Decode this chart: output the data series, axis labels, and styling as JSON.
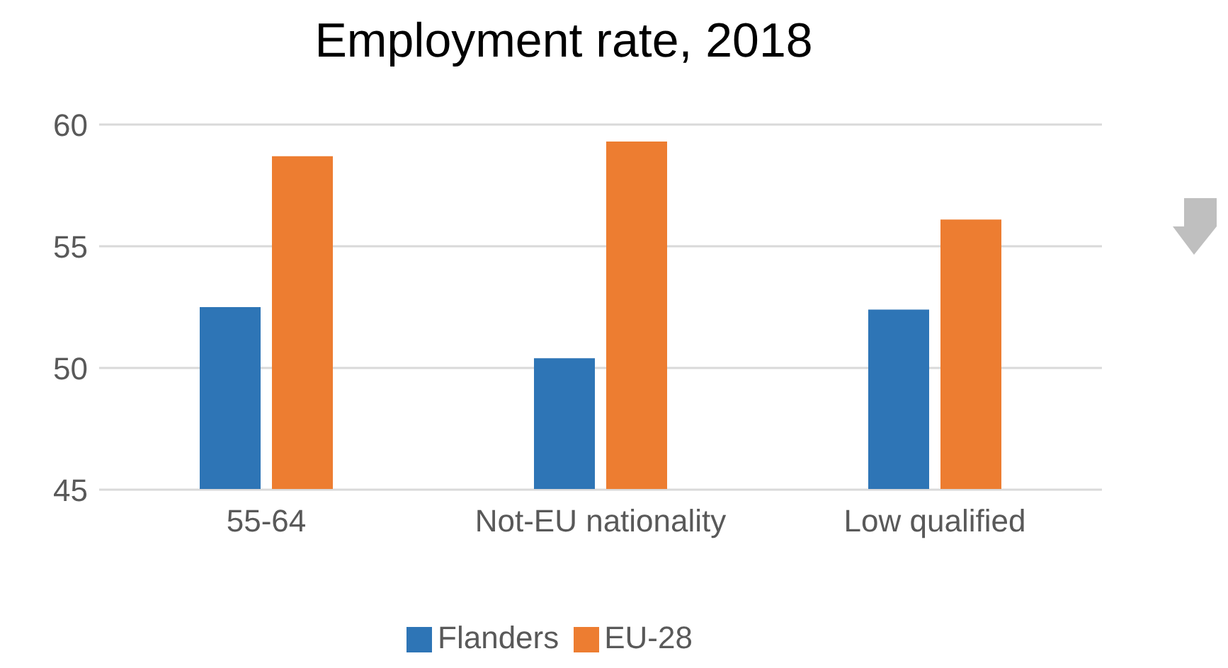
{
  "chart_data": {
    "type": "bar",
    "title": "Employment rate, 2018",
    "categories": [
      "55-64",
      "Not-EU nationality",
      "Low qualified"
    ],
    "series": [
      {
        "name": "Flanders",
        "color": "#2e75b6",
        "values": [
          52.5,
          50.4,
          52.4
        ]
      },
      {
        "name": "EU-28",
        "color": "#ed7d31",
        "values": [
          58.7,
          59.3,
          56.1
        ]
      }
    ],
    "ylim": [
      45,
      60
    ],
    "yticks": [
      45,
      50,
      55,
      60
    ],
    "grid": "y",
    "legend": "bottom"
  }
}
